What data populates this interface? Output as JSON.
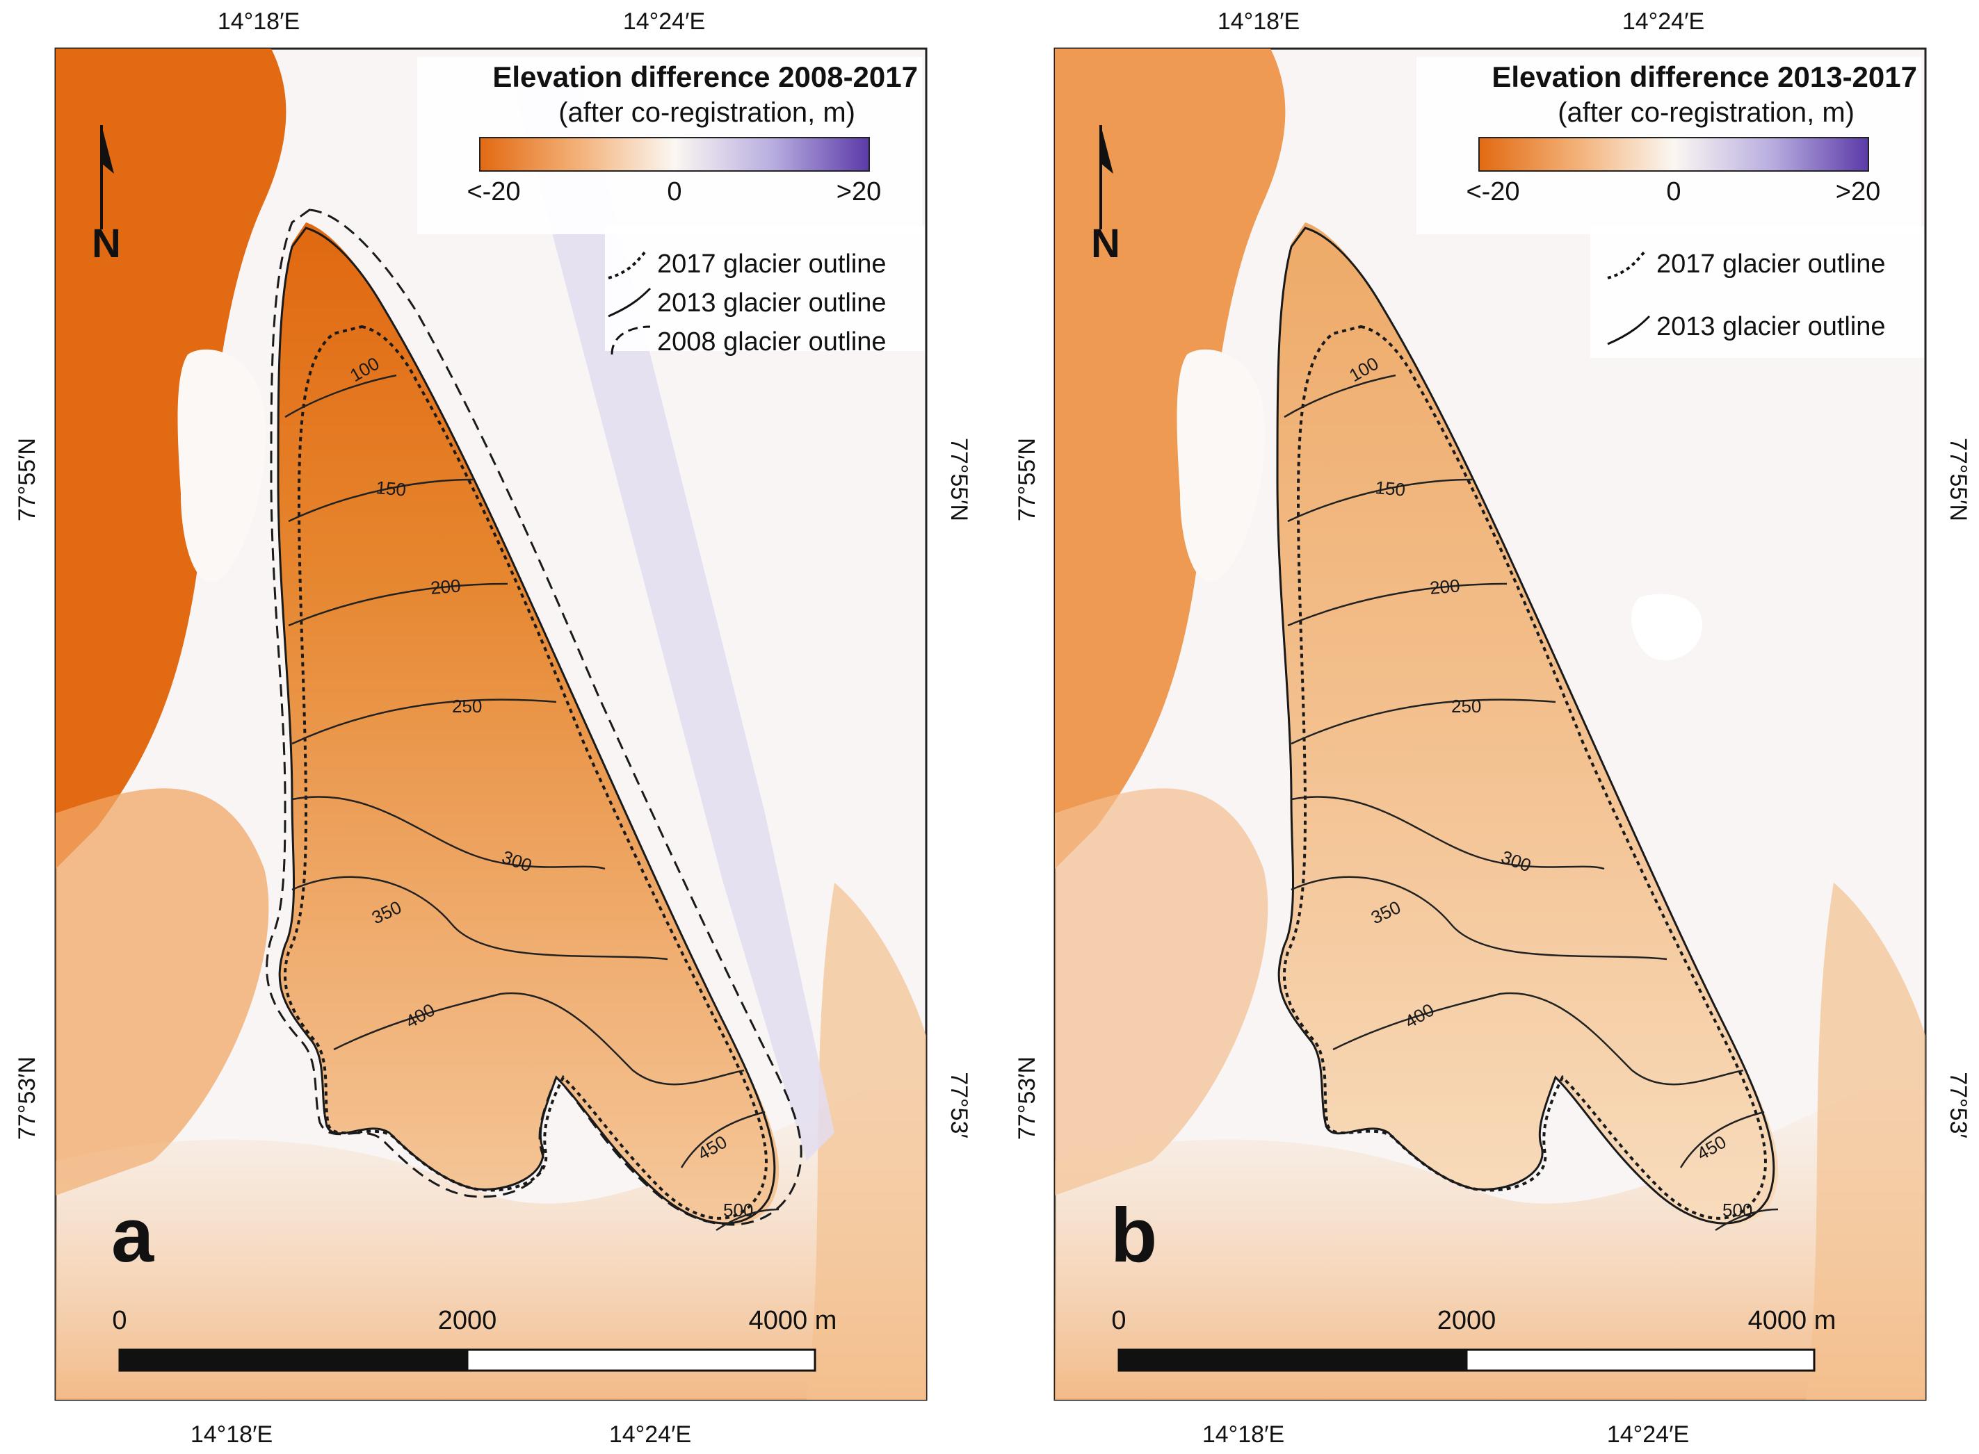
{
  "figure": {
    "colors": {
      "negative": "#e26a12",
      "zero": "#fbf7f2",
      "positive": "#5b3aa8",
      "outline": "#1a1a1a",
      "background": "#ffffff"
    },
    "panels": [
      {
        "id": "a",
        "label": "a",
        "legend_title": "Elevation difference 2008-2017",
        "legend_subtitle": "(after co-registration, m)",
        "colorbar_ticks": [
          "<-20",
          "0",
          ">20"
        ],
        "outline_legend": [
          {
            "style": "dotted",
            "label": "2017 glacier outline"
          },
          {
            "style": "solid",
            "label": "2013 glacier outline"
          },
          {
            "style": "dashed",
            "label": "2008 glacier outline"
          }
        ],
        "north_label": "N",
        "lon_ticks": [
          "14°18′E",
          "14°24′E"
        ],
        "lat_ticks": [
          "77°55′N",
          "77°53′N"
        ],
        "lat_ticks_right": [
          "77°55′N",
          "77°53′"
        ],
        "scale_bar": {
          "labels": [
            "0",
            "2000",
            "4000 m"
          ]
        },
        "contours": [
          "100",
          "150",
          "200",
          "250",
          "300",
          "350",
          "400",
          "450",
          "500"
        ],
        "fjord_strength": 1.0,
        "glacier_strength": "strong"
      },
      {
        "id": "b",
        "label": "b",
        "legend_title": "Elevation difference 2013-2017",
        "legend_subtitle": "(after co-registration, m)",
        "colorbar_ticks": [
          "<-20",
          "0",
          ">20"
        ],
        "outline_legend": [
          {
            "style": "dotted",
            "label": "2017 glacier outline"
          },
          {
            "style": "solid",
            "label": "2013 glacier outline"
          }
        ],
        "north_label": "N",
        "lon_ticks": [
          "14°18′E",
          "14°24′E"
        ],
        "lat_ticks": [
          "77°55′N",
          "77°53′N"
        ],
        "lat_ticks_right": [
          "77°55′N",
          "77°53′"
        ],
        "scale_bar": {
          "labels": [
            "0",
            "2000",
            "4000 m"
          ]
        },
        "contours": [
          "100",
          "150",
          "200",
          "250",
          "300",
          "350",
          "400",
          "450",
          "500"
        ],
        "fjord_strength": 0.55,
        "glacier_strength": "weak"
      }
    ]
  }
}
